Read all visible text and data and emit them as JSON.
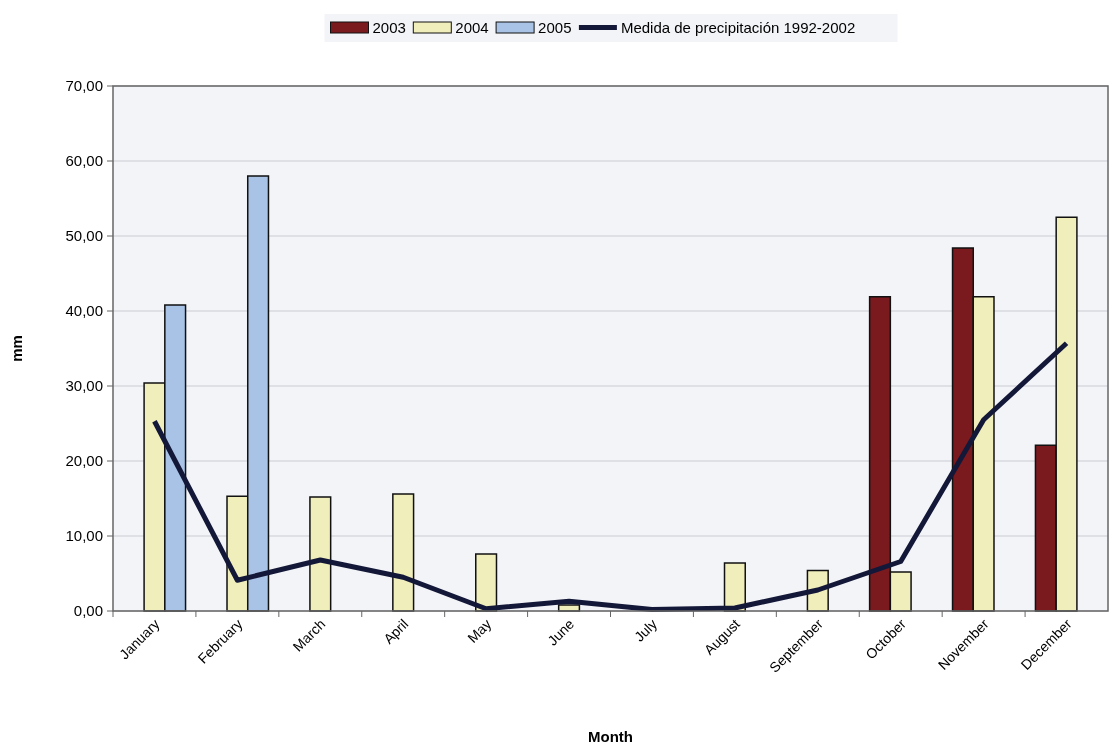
{
  "chart_data": {
    "type": "bar",
    "xlabel": "Month",
    "ylabel": "mm",
    "categories": [
      "January",
      "February",
      "March",
      "April",
      "May",
      "June",
      "July",
      "August",
      "September",
      "October",
      "November",
      "December"
    ],
    "series": [
      {
        "name": "2003",
        "color": "#7a1a1e",
        "values": [
          null,
          null,
          null,
          null,
          null,
          null,
          null,
          null,
          null,
          41.9,
          48.4,
          22.1
        ]
      },
      {
        "name": "2004",
        "color": "#f0eebb",
        "values": [
          30.4,
          15.3,
          15.2,
          15.6,
          7.6,
          0.8,
          null,
          6.4,
          5.4,
          5.2,
          41.9,
          52.5
        ]
      },
      {
        "name": "2005",
        "color": "#a9c3e6",
        "values": [
          40.8,
          58,
          null,
          null,
          null,
          null,
          null,
          null,
          null,
          null,
          null,
          null
        ]
      },
      {
        "name": "Medida de precipitación 1992-2002",
        "type": "line",
        "color": "#141838",
        "values": [
          25.3,
          4.1,
          6.8,
          4.5,
          0.3,
          1.3,
          0.2,
          0.4,
          2.8,
          6.6,
          25.5,
          35.7
        ]
      }
    ],
    "ylim": [
      0,
      70
    ],
    "yticks": [
      {
        "value": 0,
        "label": "0,00"
      },
      {
        "value": 10,
        "label": "10,00"
      },
      {
        "value": 20,
        "label": "20,00"
      },
      {
        "value": 30,
        "label": "30,00"
      },
      {
        "value": 40,
        "label": "40,00"
      },
      {
        "value": 50,
        "label": "50,00"
      },
      {
        "value": 60,
        "label": "60,00"
      },
      {
        "value": 70,
        "label": "70,00"
      }
    ],
    "grid": "y",
    "legend": "top",
    "marker": "none",
    "line_style": "solid"
  }
}
